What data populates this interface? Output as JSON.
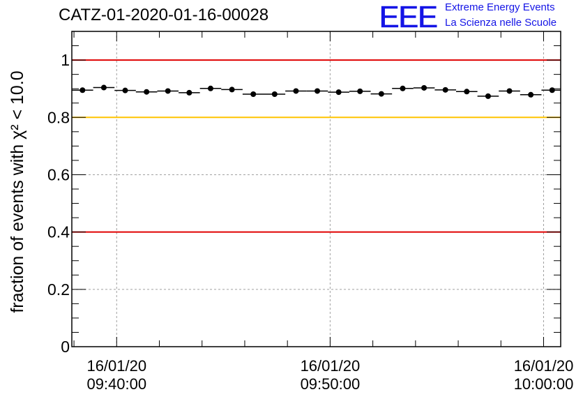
{
  "header": {
    "title": "CATZ-01-2020-01-16-00028",
    "logo_text": "EEE",
    "logo_line1": "Extreme Energy Events",
    "logo_line2": "La Scienza nelle Scuole"
  },
  "colors": {
    "logo": "#1414e6",
    "red_line": "#e00000",
    "yellow_line": "#ffc400",
    "points": "#000000",
    "grid": "#a0a0a0"
  },
  "chart_data": {
    "type": "scatter",
    "ylabel": "fraction of events with χ² < 10.0",
    "ylim": [
      0,
      1.1
    ],
    "yticks": [
      0,
      0.2,
      0.4,
      0.6,
      0.8,
      1
    ],
    "ytick_labels": [
      "0",
      "0.2",
      "0.4",
      "0.6",
      "0.8",
      "1"
    ],
    "xlim": [
      "09:37:54",
      "10:00:48"
    ],
    "xticks": [
      {
        "time": "09:40:00",
        "label_date": "16/01/20",
        "label_time": "09:40:00"
      },
      {
        "time": "09:50:00",
        "label_date": "16/01/20",
        "label_time": "09:50:00"
      },
      {
        "time": "10:00:00",
        "label_date": "16/01/20",
        "label_time": "10:00:00"
      }
    ],
    "reference_lines": [
      {
        "y": 1.0,
        "color": "#e00000"
      },
      {
        "y": 0.8,
        "color": "#ffc400"
      },
      {
        "y": 0.4,
        "color": "#e00000"
      }
    ],
    "grid": true,
    "bin_width_seconds": 60,
    "points": [
      {
        "x": "09:38:24",
        "y": 0.895
      },
      {
        "x": "09:39:24",
        "y": 0.904
      },
      {
        "x": "09:40:24",
        "y": 0.894
      },
      {
        "x": "09:41:24",
        "y": 0.889
      },
      {
        "x": "09:42:24",
        "y": 0.892
      },
      {
        "x": "09:43:24",
        "y": 0.886
      },
      {
        "x": "09:44:24",
        "y": 0.901
      },
      {
        "x": "09:45:24",
        "y": 0.897
      },
      {
        "x": "09:46:24",
        "y": 0.881
      },
      {
        "x": "09:47:24",
        "y": 0.881
      },
      {
        "x": "09:48:24",
        "y": 0.892
      },
      {
        "x": "09:49:24",
        "y": 0.892
      },
      {
        "x": "09:50:24",
        "y": 0.888
      },
      {
        "x": "09:51:24",
        "y": 0.891
      },
      {
        "x": "09:52:24",
        "y": 0.882
      },
      {
        "x": "09:53:24",
        "y": 0.901
      },
      {
        "x": "09:54:24",
        "y": 0.903
      },
      {
        "x": "09:55:24",
        "y": 0.896
      },
      {
        "x": "09:56:24",
        "y": 0.89
      },
      {
        "x": "09:57:24",
        "y": 0.874
      },
      {
        "x": "09:58:24",
        "y": 0.892
      },
      {
        "x": "09:59:24",
        "y": 0.879
      },
      {
        "x": "10:00:24",
        "y": 0.895
      }
    ]
  }
}
